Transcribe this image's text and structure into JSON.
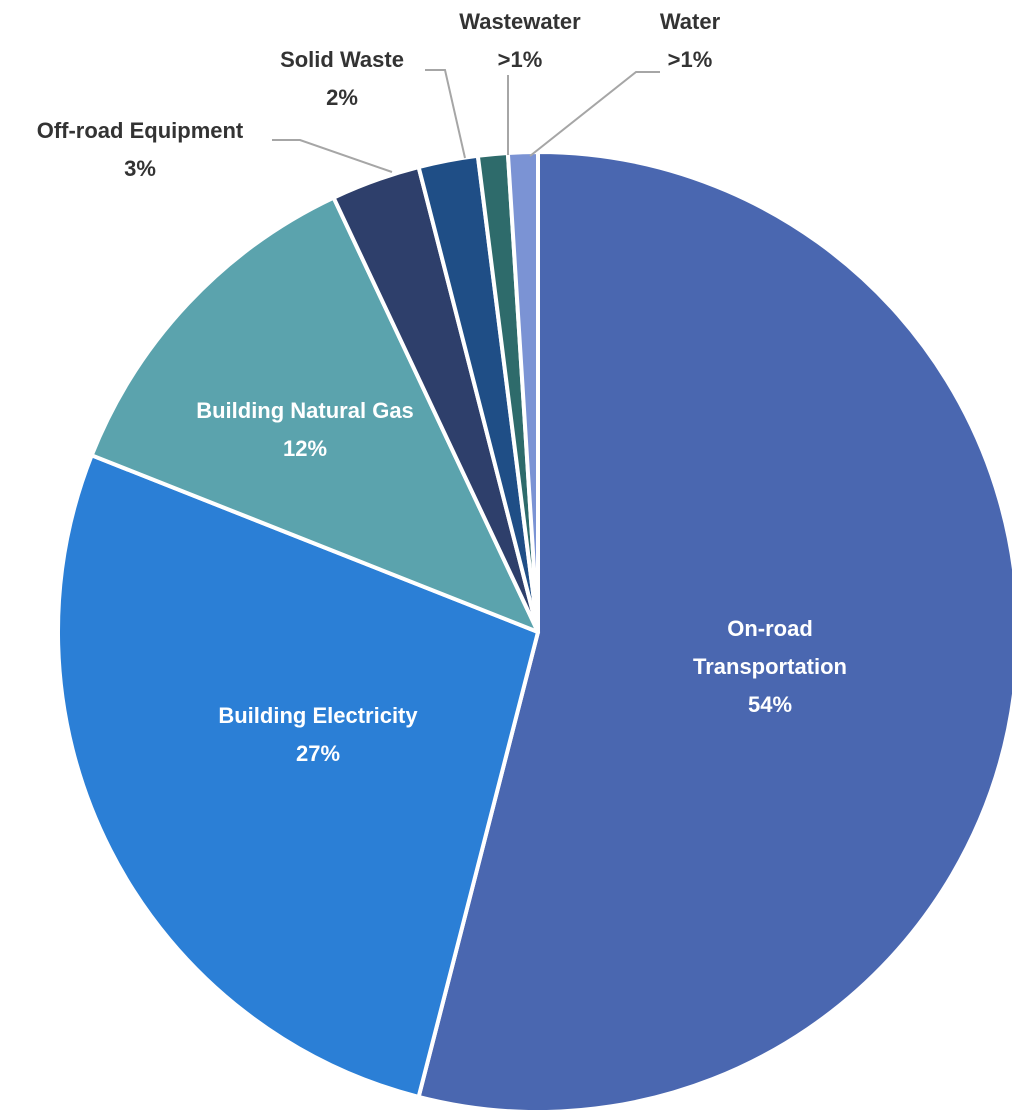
{
  "chart_data": {
    "type": "pie",
    "categories": [
      "On-road Transportation",
      "Building Electricity",
      "Building Natural Gas",
      "Off-road Equipment",
      "Solid Waste",
      "Wastewater",
      "Water"
    ],
    "values": [
      54,
      27,
      12,
      3,
      2,
      1,
      1
    ],
    "value_labels": [
      "54%",
      "27%",
      "12%",
      "3%",
      "2%",
      ">1%",
      ">1%"
    ],
    "colors": [
      "#4a67b0",
      "#2b7fd6",
      "#5ba3ad",
      "#2e3f6b",
      "#1f4e86",
      "#2e6b6b",
      "#7b93d4"
    ],
    "start_angle": 0,
    "direction": "clockwise"
  }
}
